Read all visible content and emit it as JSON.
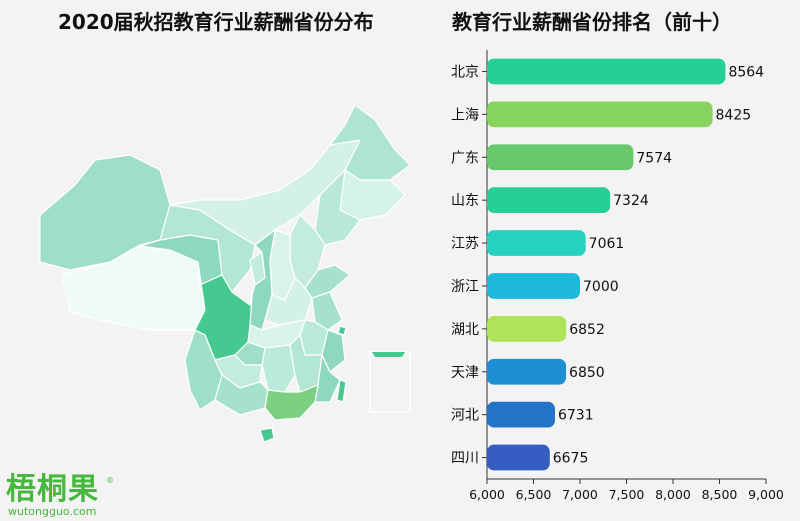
{
  "titles": {
    "left": "2020届秋招教育行业薪酬省份分布",
    "right": "教育行业薪酬省份排名（前十）"
  },
  "logo": {
    "brand": "梧桐果",
    "url": "wutongguo.com"
  },
  "colors": {
    "background": "#f3f3f3",
    "map_light": "#e6f7f1",
    "map_mid": "#9ee0c6",
    "map_dark": "#46c990"
  },
  "chart_data": {
    "type": "bar",
    "orientation": "horizontal",
    "title": "教育行业薪酬省份排名（前十）",
    "categories": [
      "北京",
      "上海",
      "广东",
      "山东",
      "江苏",
      "浙江",
      "湖北",
      "天津",
      "河北",
      "四川"
    ],
    "values": [
      8564,
      8425,
      7574,
      7324,
      7061,
      7000,
      6852,
      6850,
      6731,
      6675
    ],
    "bar_colors": [
      "#27cf98",
      "#86d45e",
      "#67c96c",
      "#27cf98",
      "#26d1c0",
      "#1fb9dc",
      "#aee35a",
      "#1f8fd3",
      "#2374c8",
      "#355cc1"
    ],
    "xlim": [
      6000,
      9000
    ],
    "x_ticks": [
      "6,000",
      "6,500",
      "7,000",
      "7,500",
      "8,000",
      "8,500",
      "9,000"
    ],
    "x_tick_values": [
      6000,
      6500,
      7000,
      7500,
      8000,
      8500,
      9000
    ],
    "grid": false,
    "legend": "none"
  }
}
